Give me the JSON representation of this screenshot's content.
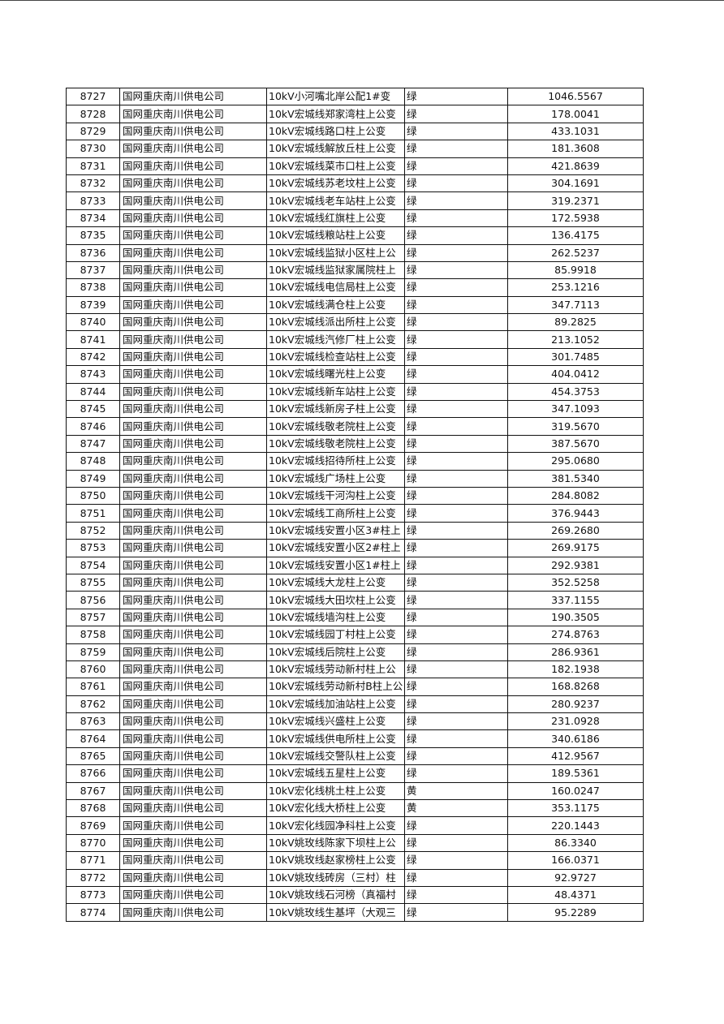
{
  "company": "国网重庆南川供电公司",
  "rows": [
    {
      "id": "8727",
      "company": "国网重庆南川供电公司",
      "name": "10kV小河嘴北岸公配1#变",
      "status": "绿",
      "value": "1046.5567"
    },
    {
      "id": "8728",
      "company": "国网重庆南川供电公司",
      "name": "10kV宏城线郑家湾柱上公变",
      "status": "绿",
      "value": "178.0041"
    },
    {
      "id": "8729",
      "company": "国网重庆南川供电公司",
      "name": "10kV宏城线路口柱上公变",
      "status": "绿",
      "value": "433.1031"
    },
    {
      "id": "8730",
      "company": "国网重庆南川供电公司",
      "name": "10kV宏城线解放丘柱上公变",
      "status": "绿",
      "value": "181.3608"
    },
    {
      "id": "8731",
      "company": "国网重庆南川供电公司",
      "name": "10kV宏城线菜市口柱上公变",
      "status": "绿",
      "value": "421.8639"
    },
    {
      "id": "8732",
      "company": "国网重庆南川供电公司",
      "name": "10kV宏城线苏老坟柱上公变",
      "status": "绿",
      "value": "304.1691"
    },
    {
      "id": "8733",
      "company": "国网重庆南川供电公司",
      "name": "10kV宏城线老车站柱上公变",
      "status": "绿",
      "value": "319.2371"
    },
    {
      "id": "8734",
      "company": "国网重庆南川供电公司",
      "name": "10kV宏城线红旗柱上公变",
      "status": "绿",
      "value": "172.5938"
    },
    {
      "id": "8735",
      "company": "国网重庆南川供电公司",
      "name": "10kV宏城线粮站柱上公变",
      "status": "绿",
      "value": "136.4175"
    },
    {
      "id": "8736",
      "company": "国网重庆南川供电公司",
      "name": "10kV宏城线监狱小区柱上公",
      "status": "绿",
      "value": "262.5237"
    },
    {
      "id": "8737",
      "company": "国网重庆南川供电公司",
      "name": "10kV宏城线监狱家属院柱上",
      "status": "绿",
      "value": "85.9918"
    },
    {
      "id": "8738",
      "company": "国网重庆南川供电公司",
      "name": "10kV宏城线电信局柱上公变",
      "status": "绿",
      "value": "253.1216"
    },
    {
      "id": "8739",
      "company": "国网重庆南川供电公司",
      "name": "10kV宏城线满仓柱上公变",
      "status": "绿",
      "value": "347.7113"
    },
    {
      "id": "8740",
      "company": "国网重庆南川供电公司",
      "name": "10kV宏城线派出所柱上公变",
      "status": "绿",
      "value": "89.2825"
    },
    {
      "id": "8741",
      "company": "国网重庆南川供电公司",
      "name": "10kV宏城线汽修厂柱上公变",
      "status": "绿",
      "value": "213.1052"
    },
    {
      "id": "8742",
      "company": "国网重庆南川供电公司",
      "name": "10kV宏城线检查站柱上公变",
      "status": "绿",
      "value": "301.7485"
    },
    {
      "id": "8743",
      "company": "国网重庆南川供电公司",
      "name": "10kV宏城线曙光柱上公变",
      "status": "绿",
      "value": "404.0412"
    },
    {
      "id": "8744",
      "company": "国网重庆南川供电公司",
      "name": "10kV宏城线新车站柱上公变",
      "status": "绿",
      "value": "454.3753"
    },
    {
      "id": "8745",
      "company": "国网重庆南川供电公司",
      "name": "10kV宏城线新房子柱上公变",
      "status": "绿",
      "value": "347.1093"
    },
    {
      "id": "8746",
      "company": "国网重庆南川供电公司",
      "name": "10kV宏城线敬老院柱上公变",
      "status": "绿",
      "value": "319.5670"
    },
    {
      "id": "8747",
      "company": "国网重庆南川供电公司",
      "name": "10kV宏城线敬老院柱上公变",
      "status": "绿",
      "value": "387.5670"
    },
    {
      "id": "8748",
      "company": "国网重庆南川供电公司",
      "name": "10kV宏城线招待所柱上公变",
      "status": "绿",
      "value": "295.0680"
    },
    {
      "id": "8749",
      "company": "国网重庆南川供电公司",
      "name": "10kV宏城线广场柱上公变",
      "status": "绿",
      "value": "381.5340"
    },
    {
      "id": "8750",
      "company": "国网重庆南川供电公司",
      "name": "10kV宏城线干河沟柱上公变",
      "status": "绿",
      "value": "284.8082"
    },
    {
      "id": "8751",
      "company": "国网重庆南川供电公司",
      "name": "10kV宏城线工商所柱上公变",
      "status": "绿",
      "value": "376.9443"
    },
    {
      "id": "8752",
      "company": "国网重庆南川供电公司",
      "name": "10kV宏城线安置小区3#柱上",
      "status": "绿",
      "value": "269.2680"
    },
    {
      "id": "8753",
      "company": "国网重庆南川供电公司",
      "name": "10kV宏城线安置小区2#柱上",
      "status": "绿",
      "value": "269.9175"
    },
    {
      "id": "8754",
      "company": "国网重庆南川供电公司",
      "name": "10kV宏城线安置小区1#柱上",
      "status": "绿",
      "value": "292.9381"
    },
    {
      "id": "8755",
      "company": "国网重庆南川供电公司",
      "name": "10kV宏城线大龙柱上公变",
      "status": "绿",
      "value": "352.5258"
    },
    {
      "id": "8756",
      "company": "国网重庆南川供电公司",
      "name": "10kV宏城线大田坎柱上公变",
      "status": "绿",
      "value": "337.1155"
    },
    {
      "id": "8757",
      "company": "国网重庆南川供电公司",
      "name": "10kV宏城线墙沟柱上公变",
      "status": "绿",
      "value": "190.3505"
    },
    {
      "id": "8758",
      "company": "国网重庆南川供电公司",
      "name": "10kV宏城线园丁村柱上公变",
      "status": "绿",
      "value": "274.8763"
    },
    {
      "id": "8759",
      "company": "国网重庆南川供电公司",
      "name": "10kV宏城线后院柱上公变",
      "status": "绿",
      "value": "286.9361"
    },
    {
      "id": "8760",
      "company": "国网重庆南川供电公司",
      "name": "10kV宏城线劳动新村柱上公",
      "status": "绿",
      "value": "182.1938"
    },
    {
      "id": "8761",
      "company": "国网重庆南川供电公司",
      "name": "10kV宏城线劳动新村B柱上公",
      "status": "绿",
      "value": "168.8268"
    },
    {
      "id": "8762",
      "company": "国网重庆南川供电公司",
      "name": "10kV宏城线加油站柱上公变",
      "status": "绿",
      "value": "280.9237"
    },
    {
      "id": "8763",
      "company": "国网重庆南川供电公司",
      "name": "10kV宏城线兴盛柱上公变",
      "status": "绿",
      "value": "231.0928"
    },
    {
      "id": "8764",
      "company": "国网重庆南川供电公司",
      "name": "10kV宏城线供电所柱上公变",
      "status": "绿",
      "value": "340.6186"
    },
    {
      "id": "8765",
      "company": "国网重庆南川供电公司",
      "name": "10kV宏城线交警队柱上公变",
      "status": "绿",
      "value": "412.9567"
    },
    {
      "id": "8766",
      "company": "国网重庆南川供电公司",
      "name": "10kV宏城线五星柱上公变",
      "status": "绿",
      "value": "189.5361"
    },
    {
      "id": "8767",
      "company": "国网重庆南川供电公司",
      "name": "10kV宏化线桃土柱上公变",
      "status": "黄",
      "value": "160.0247"
    },
    {
      "id": "8768",
      "company": "国网重庆南川供电公司",
      "name": "10kV宏化线大桥柱上公变",
      "status": "黄",
      "value": "353.1175"
    },
    {
      "id": "8769",
      "company": "国网重庆南川供电公司",
      "name": "10kV宏化线园净科柱上公变",
      "status": "绿",
      "value": "220.1443"
    },
    {
      "id": "8770",
      "company": "国网重庆南川供电公司",
      "name": "10kV姚玫线陈家下坝柱上公",
      "status": "绿",
      "value": "86.3340"
    },
    {
      "id": "8771",
      "company": "国网重庆南川供电公司",
      "name": "10kV姚玫线赵家榜柱上公变",
      "status": "绿",
      "value": "166.0371"
    },
    {
      "id": "8772",
      "company": "国网重庆南川供电公司",
      "name": "10kV姚玫线砖房（三村）柱",
      "status": "绿",
      "value": "92.9727"
    },
    {
      "id": "8773",
      "company": "国网重庆南川供电公司",
      "name": "10kV姚玫线石河榜（真福村",
      "status": "绿",
      "value": "48.4371"
    },
    {
      "id": "8774",
      "company": "国网重庆南川供电公司",
      "name": "10kV姚玫线生基坪（大观三",
      "status": "绿",
      "value": "95.2289"
    }
  ]
}
